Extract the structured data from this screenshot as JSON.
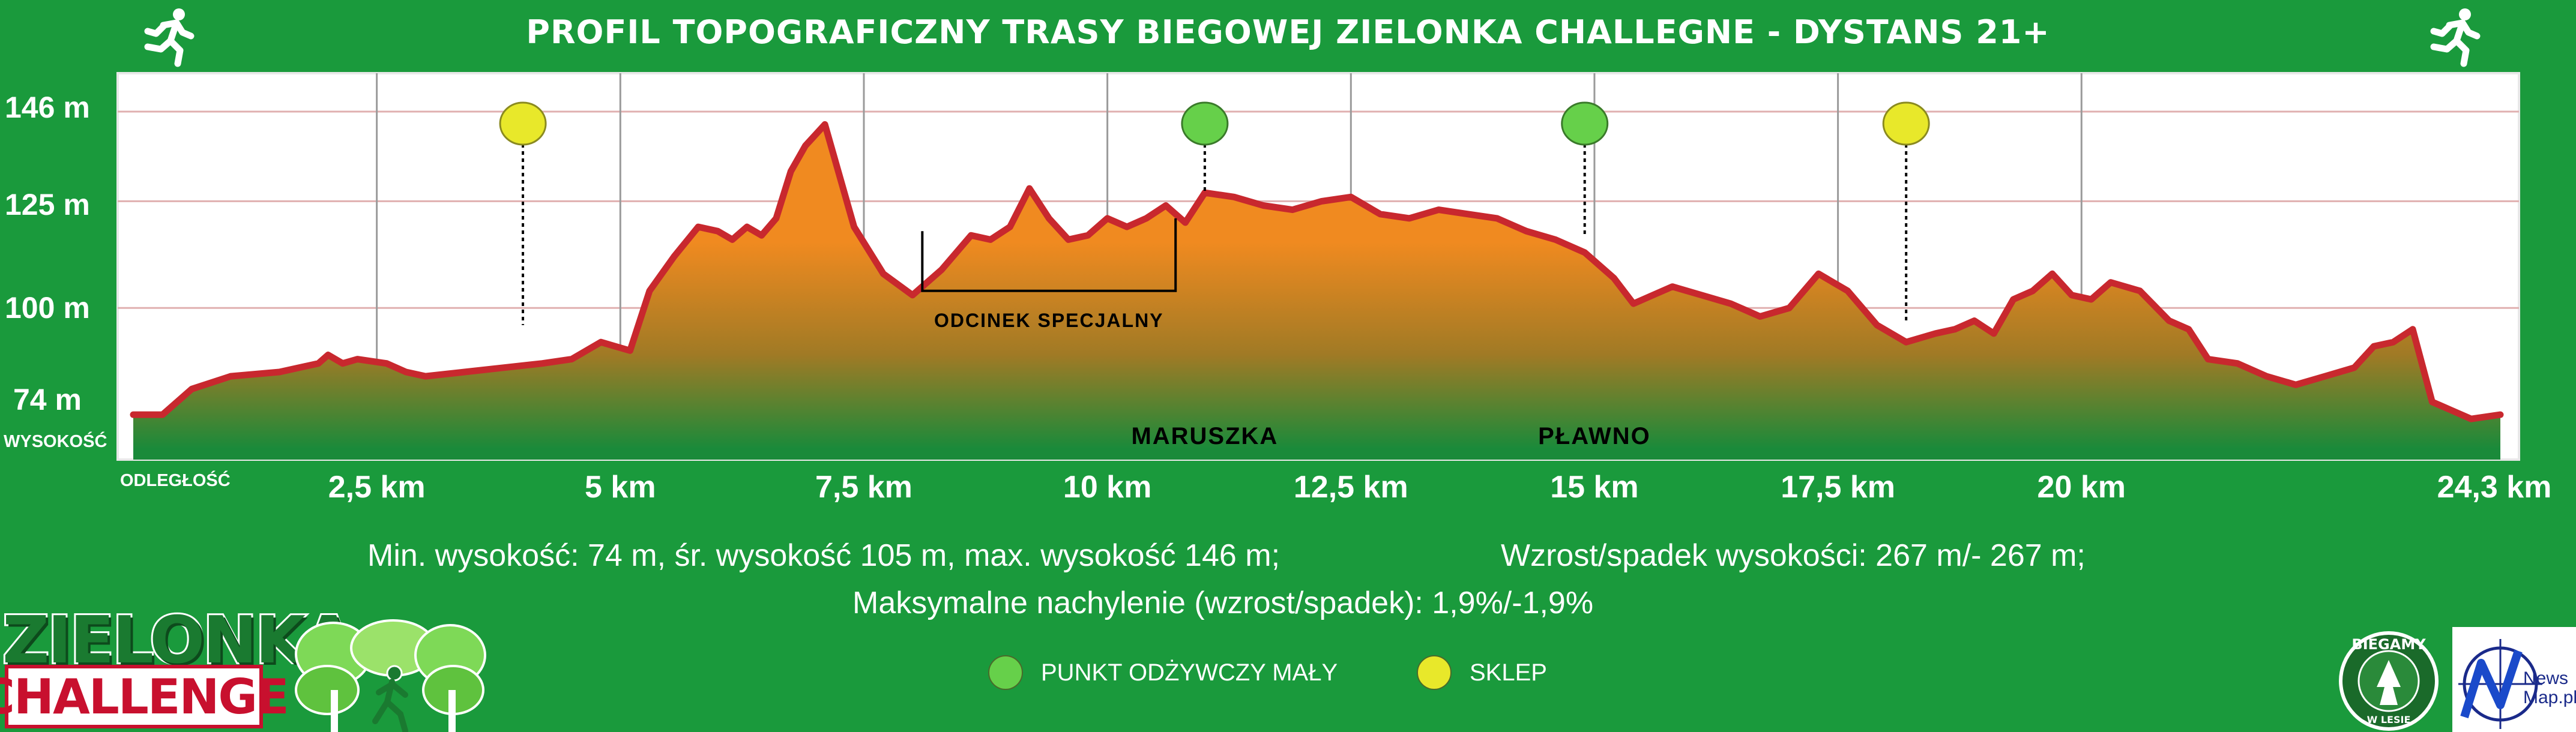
{
  "header": {
    "title": "PROFIL TOPOGRAFICZNY TRASY BIEGOWEJ ZIELONKA CHALLEGNE - DYSTANS 21+"
  },
  "chart_data": {
    "type": "area",
    "title": "PROFIL TOPOGRAFICZNY TRASY BIEGOWEJ ZIELONKA CHALLEGNE - DYSTANS 21+",
    "xlabel": "ODLEGŁOŚĆ",
    "ylabel": "WYSOKOŚĆ",
    "xlim": [
      0,
      24.3
    ],
    "ylim": [
      67,
      155
    ],
    "x_ticks": [
      {
        "value": 2.5,
        "label": "2,5 km"
      },
      {
        "value": 5,
        "label": "5 km"
      },
      {
        "value": 7.5,
        "label": "7,5 km"
      },
      {
        "value": 10,
        "label": "10 km"
      },
      {
        "value": 12.5,
        "label": "12,5 km"
      },
      {
        "value": 15,
        "label": "15 km"
      },
      {
        "value": 17.5,
        "label": "17,5 km"
      },
      {
        "value": 20,
        "label": "20 km"
      },
      {
        "value": 24.3,
        "label": "24,3 km"
      }
    ],
    "y_ticks": [
      {
        "value": 146,
        "label": "146 m"
      },
      {
        "value": 125,
        "label": "125 m"
      },
      {
        "value": 100,
        "label": "100 m"
      },
      {
        "value": 74,
        "label": "74 m"
      }
    ],
    "grid": true,
    "series": [
      {
        "x": [
          0,
          0.3,
          0.6,
          1.0,
          1.5,
          1.9,
          2.0,
          2.15,
          2.3,
          2.6,
          2.8,
          3.0,
          3.4,
          3.8,
          4.2,
          4.5,
          4.8,
          5.1,
          5.3,
          5.55,
          5.8,
          6.0,
          6.15,
          6.3,
          6.45,
          6.6,
          6.75,
          6.9,
          7.1,
          7.4,
          7.7,
          8.0,
          8.3,
          8.6,
          8.8,
          9.0,
          9.2,
          9.4,
          9.6,
          9.8,
          10.0,
          10.2,
          10.4,
          10.6,
          10.8,
          11.0,
          11.3,
          11.6,
          11.9,
          12.2,
          12.5,
          12.8,
          13.1,
          13.4,
          13.7,
          14.0,
          14.3,
          14.6,
          14.9,
          15.2,
          15.4,
          15.6,
          15.8,
          16.1,
          16.4,
          16.7,
          17.0,
          17.3,
          17.6,
          17.9,
          18.2,
          18.5,
          18.7,
          18.9,
          19.1,
          19.3,
          19.5,
          19.7,
          19.9,
          20.1,
          20.3,
          20.6,
          20.9,
          21.1,
          21.3,
          21.6,
          21.9,
          22.2,
          22.5,
          22.8,
          23.0,
          23.2,
          23.4,
          23.6,
          23.8,
          24.0,
          24.3
        ],
        "y": [
          75,
          75,
          81,
          84,
          85,
          87,
          89,
          87,
          88,
          87,
          85,
          84,
          85,
          86,
          87,
          88,
          92,
          90,
          104,
          112,
          119,
          118,
          116,
          119,
          117,
          121,
          132,
          138,
          143,
          119,
          108,
          103,
          109,
          117,
          116,
          119,
          128,
          121,
          116,
          117,
          121,
          119,
          121,
          124,
          120,
          127,
          126,
          124,
          123,
          125,
          126,
          122,
          121,
          123,
          122,
          121,
          118,
          116,
          113,
          107,
          101,
          103,
          105,
          103,
          101,
          98,
          100,
          108,
          104,
          96,
          92,
          94,
          95,
          97,
          94,
          102,
          104,
          108,
          103,
          102,
          106,
          104,
          97,
          95,
          88,
          87,
          84,
          82,
          84,
          86,
          91,
          92,
          95,
          78,
          76,
          74,
          75
        ]
      }
    ],
    "markers": [
      {
        "type": "shop",
        "x": 4.0,
        "y": 96
      },
      {
        "type": "aid",
        "x": 11.0,
        "y": 127
      },
      {
        "type": "aid",
        "x": 14.9,
        "y": 117
      },
      {
        "type": "shop",
        "x": 18.2,
        "y": 97
      }
    ],
    "special_section": {
      "label": "ODCINEK SPECJALNY",
      "x_start": 8.1,
      "x_end": 10.7,
      "y_top": 118,
      "y_bottom": 104
    },
    "annotations": [
      {
        "text": "MARUSZKA",
        "x": 11.0
      },
      {
        "text": "PŁAWNO",
        "x": 15.0
      }
    ],
    "colors": {
      "profile_line": "#c8282e",
      "fill_top": "#f08a20",
      "fill_mid": "#a07a25",
      "fill_bottom": "#1a8a3a",
      "aid_marker": "#66d04a",
      "shop_marker": "#e8e82a",
      "frame": "#1a9a3c"
    }
  },
  "stats": {
    "line1_left": "Min. wysokość: 74 m, śr. wysokość 105 m, max. wysokość 146 m;",
    "line1_right": "Wzrost/spadek wysokości: 267 m/- 267 m;",
    "line2": "Maksymalne nachylenie (wzrost/spadek): 1,9%/-1,9%"
  },
  "legend": {
    "aid_label": "PUNKT ODŻYWCZY MAŁY",
    "shop_label": "SKLEP"
  },
  "logos": {
    "zielonka_top": "ZIELONKA",
    "zielonka_bottom": "CHALLENGE",
    "badge_top": "BIEGAMY",
    "badge_bottom": "W LESIE",
    "newsmap_line1": "News",
    "newsmap_line2": "Map.pl"
  },
  "icons": {
    "runner": "runner-icon",
    "trees": "trees-logo-icon"
  }
}
